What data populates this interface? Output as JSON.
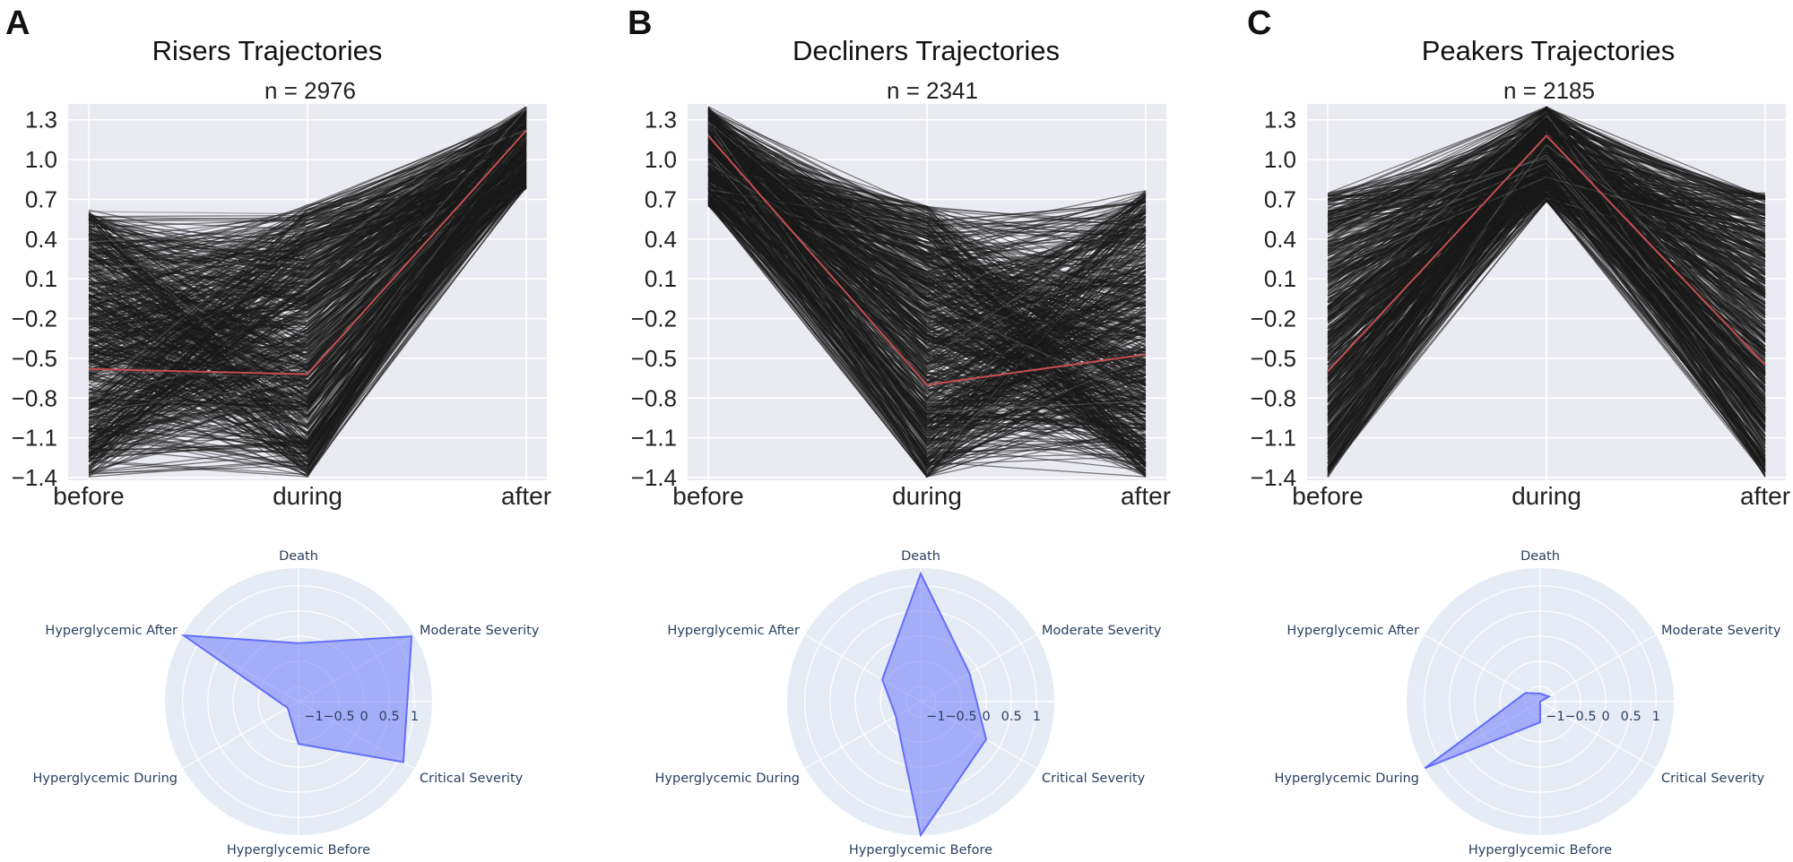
{
  "chart_data": [
    {
      "type": "line",
      "panel_label": "A",
      "title": "Risers Trajectories",
      "subtitle": "n = 2976",
      "categories": [
        "before",
        "during",
        "after"
      ],
      "ylim": [
        -1.42,
        1.42
      ],
      "yticks": [
        1.3,
        1.0,
        0.7,
        0.4,
        0.1,
        -0.2,
        -0.5,
        -0.8,
        -1.1,
        -1.4
      ],
      "ytick_labels": [
        "1.3",
        "1.0",
        "0.7",
        "0.4",
        "0.1",
        "−0.2",
        "−0.5",
        "−0.8",
        "−1.1",
        "−1.4"
      ],
      "grid": true,
      "individual_trajectories_range": [
        [
          -1.4,
          0.63
        ],
        [
          -1.4,
          0.66
        ],
        [
          0.78,
          1.4
        ]
      ],
      "mean_trajectory": [
        -0.58,
        -0.62,
        1.22
      ],
      "colors": {
        "trajectories": "#1a1a1a",
        "mean": "#c44e52",
        "background": "#eaeaf2"
      }
    },
    {
      "type": "line",
      "panel_label": "B",
      "title": "Decliners Trajectories",
      "subtitle": "n = 2341",
      "categories": [
        "before",
        "during",
        "after"
      ],
      "ylim": [
        -1.42,
        1.42
      ],
      "yticks": [
        1.3,
        1.0,
        0.7,
        0.4,
        0.1,
        -0.2,
        -0.5,
        -0.8,
        -1.1,
        -1.4
      ],
      "ytick_labels": [
        "1.3",
        "1.0",
        "0.7",
        "0.4",
        "0.1",
        "−0.2",
        "−0.5",
        "−0.8",
        "−1.1",
        "−1.4"
      ],
      "grid": true,
      "individual_trajectories_range": [
        [
          0.65,
          1.4
        ],
        [
          -1.4,
          0.65
        ],
        [
          -1.4,
          0.77
        ]
      ],
      "mean_trajectory": [
        1.18,
        -0.7,
        -0.47
      ],
      "colors": {
        "trajectories": "#1a1a1a",
        "mean": "#c44e52",
        "background": "#eaeaf2"
      }
    },
    {
      "type": "line",
      "panel_label": "C",
      "title": "Peakers Trajectories",
      "subtitle": "n = 2185",
      "categories": [
        "before",
        "during",
        "after"
      ],
      "ylim": [
        -1.42,
        1.42
      ],
      "yticks": [
        1.3,
        1.0,
        0.7,
        0.4,
        0.1,
        -0.2,
        -0.5,
        -0.8,
        -1.1,
        -1.4
      ],
      "ytick_labels": [
        "1.3",
        "1.0",
        "0.7",
        "0.4",
        "0.1",
        "−0.2",
        "−0.5",
        "−0.8",
        "−1.1",
        "−1.4"
      ],
      "grid": true,
      "individual_trajectories_range": [
        [
          -1.4,
          0.75
        ],
        [
          0.68,
          1.4
        ],
        [
          -1.4,
          0.75
        ]
      ],
      "mean_trajectory": [
        -0.6,
        1.18,
        -0.55
      ],
      "colors": {
        "trajectories": "#1a1a1a",
        "mean": "#c44e52",
        "background": "#eaeaf2"
      }
    },
    {
      "type": "radar",
      "panel": "A",
      "categories": [
        "Death",
        "Moderate Severity",
        "Critical Severity",
        "Hyperglycemic Before",
        "Hyperglycemic During",
        "Hyperglycemic After"
      ],
      "values": [
        -0.14,
        1.29,
        1.1,
        -0.46,
        -1.05,
        1.33
      ],
      "radial_range": [
        -1.3,
        1.35
      ],
      "radial_ticks": [
        -1,
        -0.5,
        0,
        0.5,
        1
      ],
      "radial_tick_labels": [
        "−1",
        "−0.5",
        "0",
        "0.5",
        "1"
      ],
      "colors": {
        "fill": "#636efa",
        "background": "#e5ecf6"
      }
    },
    {
      "type": "radar",
      "panel": "B",
      "categories": [
        "Death",
        "Moderate Severity",
        "Critical Severity",
        "Hyperglycemic Before",
        "Hyperglycemic During",
        "Hyperglycemic After"
      ],
      "values": [
        1.24,
        -0.18,
        0.2,
        1.35,
        -0.73,
        -0.42
      ],
      "radial_range": [
        -1.3,
        1.35
      ],
      "radial_ticks": [
        -1,
        -0.5,
        0,
        0.5,
        1
      ],
      "radial_tick_labels": [
        "−1",
        "−0.5",
        "0",
        "0.5",
        "1"
      ],
      "colors": {
        "fill": "#636efa",
        "background": "#e5ecf6"
      }
    },
    {
      "type": "radar",
      "panel": "C",
      "categories": [
        "Death",
        "Moderate Severity",
        "Critical Severity",
        "Hyperglycemic Before",
        "Hyperglycemic During",
        "Hyperglycemic After"
      ],
      "values": [
        -1.14,
        -1.1,
        -1.3,
        -0.89,
        1.34,
        -0.96
      ],
      "radial_range": [
        -1.3,
        1.35
      ],
      "radial_ticks": [
        -1,
        -0.5,
        0,
        0.5,
        1
      ],
      "radial_tick_labels": [
        "−1",
        "−0.5",
        "0",
        "0.5",
        "1"
      ],
      "colors": {
        "fill": "#636efa",
        "background": "#e5ecf6"
      }
    }
  ]
}
